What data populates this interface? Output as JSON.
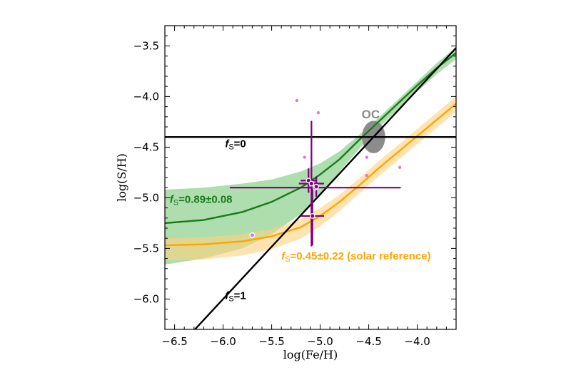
{
  "chart_data": {
    "type": "line",
    "xlabel": "log(Fe/H)",
    "ylabel": "log(S/H)",
    "xlim": [
      -6.6,
      -3.6
    ],
    "ylim": [
      -6.3,
      -3.3
    ],
    "xticks": [
      -6.5,
      -6.0,
      -5.5,
      -5.0,
      -4.5,
      -4.0
    ],
    "xtick_labels": [
      "−6.5",
      "−6.0",
      "−5.5",
      "−5.0",
      "−4.5",
      "−4.0"
    ],
    "yticks": [
      -3.5,
      -4.0,
      -4.5,
      -5.0,
      -5.5,
      -6.0
    ],
    "ytick_labels": [
      "−3.5",
      "−4.0",
      "−4.5",
      "−5.0",
      "−5.5",
      "−6.0"
    ],
    "grid": false,
    "colors": {
      "black": "#000000",
      "green": "#1a7a1a",
      "green_band": "#8ccf8c",
      "orange": "#ffa500",
      "orange_band": "#ffd27f",
      "purple": "#800080",
      "light_purple": "#d87fd8",
      "oc_gray": "#8c8c8c"
    },
    "lines": [
      {
        "label": "fS=0",
        "x": [
          -6.6,
          -3.6
        ],
        "y": [
          -4.4,
          -4.4
        ]
      },
      {
        "label": "fS=1",
        "x": [
          -6.6,
          -3.6
        ],
        "y": [
          -6.62,
          -3.52
        ]
      }
    ],
    "models": [
      {
        "label": "fS=0.89±0.08",
        "x": [
          -6.6,
          -6.2,
          -5.8,
          -5.5,
          -5.2,
          -5.0,
          -4.8,
          -4.6,
          -4.4,
          -4.2,
          -4.0,
          -3.8,
          -3.6
        ],
        "y": [
          -5.25,
          -5.22,
          -5.14,
          -5.04,
          -4.9,
          -4.77,
          -4.62,
          -4.43,
          -4.25,
          -4.07,
          -3.89,
          -3.72,
          -3.57
        ],
        "upper": [
          -4.92,
          -4.9,
          -4.86,
          -4.82,
          -4.74,
          -4.66,
          -4.54,
          -4.38,
          -4.21,
          -4.03,
          -3.85,
          -3.67,
          -3.51
        ],
        "lower": [
          -5.66,
          -5.6,
          -5.5,
          -5.36,
          -5.16,
          -4.98,
          -4.74,
          -4.52,
          -4.31,
          -4.13,
          -3.95,
          -3.78,
          -3.63
        ]
      },
      {
        "label": "fS=0.45±0.22 (solar reference)",
        "x": [
          -6.6,
          -6.2,
          -5.8,
          -5.5,
          -5.2,
          -5.0,
          -4.8,
          -4.6,
          -4.4,
          -4.2,
          -4.0,
          -3.8,
          -3.6
        ],
        "y": [
          -5.47,
          -5.46,
          -5.43,
          -5.38,
          -5.29,
          -5.18,
          -5.04,
          -4.88,
          -4.71,
          -4.55,
          -4.39,
          -4.23,
          -4.07
        ],
        "upper": [
          -5.4,
          -5.39,
          -5.36,
          -5.31,
          -5.21,
          -5.1,
          -4.97,
          -4.81,
          -4.64,
          -4.48,
          -4.32,
          -4.16,
          -4.0
        ],
        "lower": [
          -5.62,
          -5.61,
          -5.57,
          -5.51,
          -5.4,
          -5.28,
          -5.13,
          -4.96,
          -4.79,
          -4.63,
          -4.47,
          -4.31,
          -4.15
        ]
      }
    ],
    "measurements": [
      {
        "x": -5.12,
        "y": -4.83,
        "xerr": 0.08,
        "yerr": 0.12
      },
      {
        "x": -5.09,
        "y": -4.86,
        "xerr": 0.13,
        "yerr": 0.62
      },
      {
        "x": -5.05,
        "y": -4.9,
        "xerr": 0.88,
        "yerr": 0.0
      },
      {
        "x": -5.04,
        "y": -4.89,
        "xerr": 0.0,
        "yerr": 0.1
      },
      {
        "x": -5.08,
        "y": -5.18,
        "xerr": 0.12,
        "yerr": 0.29
      }
    ],
    "measurement_markers_only": [
      {
        "x": -5.7,
        "y": -5.37
      }
    ],
    "faint_points": [
      {
        "x": -5.24,
        "y": -4.04
      },
      {
        "x": -5.02,
        "y": -4.16
      },
      {
        "x": -5.16,
        "y": -4.6
      },
      {
        "x": -4.52,
        "y": -4.6
      },
      {
        "x": -4.52,
        "y": -4.78
      },
      {
        "x": -4.18,
        "y": -4.7
      }
    ],
    "oc": {
      "label": "OC",
      "x": -4.45,
      "y": -4.4,
      "rx": 0.12,
      "ry": 0.16
    },
    "annotations": [
      {
        "text_f": "f",
        "text_sub": "S",
        "text_rest": "=0",
        "x": -5.98,
        "y": -4.5,
        "color": "#000000"
      },
      {
        "text_f": "f",
        "text_sub": "S",
        "text_rest": "=1",
        "x": -5.98,
        "y": -6.0,
        "color": "#000000"
      },
      {
        "text_f": "f",
        "text_sub": "S",
        "text_rest": "=0.89±0.08",
        "x": -6.55,
        "y": -5.05,
        "color": "#1a7a1a"
      },
      {
        "text_f": "f",
        "text_sub": "S",
        "text_rest": "=0.45±0.22 (solar reference)",
        "x": -5.4,
        "y": -5.61,
        "color": "#ffa500"
      }
    ]
  }
}
